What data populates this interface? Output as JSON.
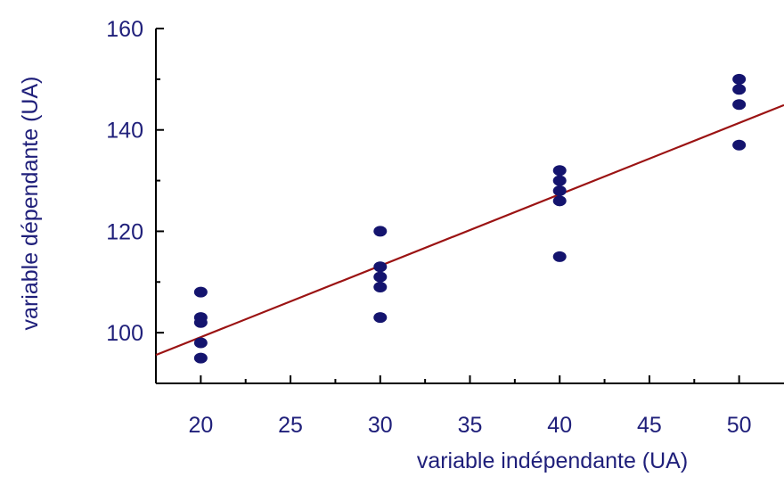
{
  "chart_data": {
    "type": "scatter",
    "title": "",
    "xlabel": "variable indépendante (UA)",
    "ylabel": "variable dépendante (UA)",
    "xlim": [
      17.5,
      52.5
    ],
    "ylim": [
      90,
      160
    ],
    "x_ticks": [
      20,
      25,
      30,
      35,
      40,
      45,
      50
    ],
    "y_ticks": [
      100,
      120,
      140,
      160
    ],
    "grid": false,
    "points": [
      {
        "x": 20,
        "y": 108
      },
      {
        "x": 20,
        "y": 103
      },
      {
        "x": 20,
        "y": 102
      },
      {
        "x": 20,
        "y": 98
      },
      {
        "x": 20,
        "y": 95
      },
      {
        "x": 30,
        "y": 120
      },
      {
        "x": 30,
        "y": 113
      },
      {
        "x": 30,
        "y": 111
      },
      {
        "x": 30,
        "y": 109
      },
      {
        "x": 30,
        "y": 103
      },
      {
        "x": 40,
        "y": 132
      },
      {
        "x": 40,
        "y": 130
      },
      {
        "x": 40,
        "y": 128
      },
      {
        "x": 40,
        "y": 126
      },
      {
        "x": 40,
        "y": 115
      },
      {
        "x": 50,
        "y": 150
      },
      {
        "x": 50,
        "y": 148
      },
      {
        "x": 50,
        "y": 145
      },
      {
        "x": 50,
        "y": 137
      }
    ],
    "regression_line": {
      "x": [
        17.5,
        52.5
      ],
      "y": [
        95.6,
        144.9
      ]
    },
    "colors": {
      "points": "#14146e",
      "line": "#9b1313",
      "axis": "#000000",
      "text": "#1f1f7a"
    }
  }
}
